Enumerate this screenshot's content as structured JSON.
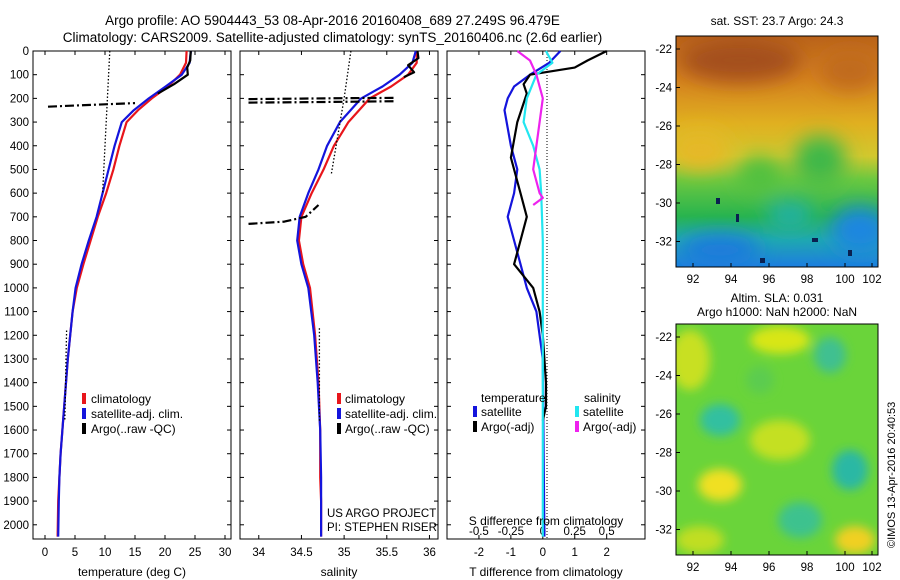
{
  "header": {
    "title_line1": "Argo profile: AO 5904443_53 08-Apr-2016 20160408_689 27.249S 96.479E",
    "title_line2": "Climatology: CARS2009. Satellite-adjusted climatology: synTS_20160406.nc (2.6d earlier)"
  },
  "colors": {
    "red": "#e8151b",
    "blue": "#1414dc",
    "black": "#000000",
    "cyan": "#22e6f0",
    "magenta": "#ee22ee"
  },
  "credits": {
    "project": "US ARGO PROJECT",
    "pi": "PI: STEPHEN RISER"
  },
  "timestamp": "©IMOS 13-Apr-2016 20:40:53",
  "chart_data": [
    {
      "type": "line",
      "xlabel": "temperature (deg C)",
      "xlim": [
        -2,
        31
      ],
      "ylim": [
        2060,
        0
      ],
      "xticks": [
        0,
        5,
        10,
        15,
        20,
        25,
        30
      ],
      "yticks": [
        0,
        100,
        200,
        300,
        400,
        500,
        600,
        700,
        800,
        900,
        1000,
        1100,
        1200,
        1300,
        1400,
        1500,
        1600,
        1700,
        1800,
        1900,
        2000
      ],
      "legend": [
        "climatology",
        "satellite-adj. clim.",
        "Argo(..raw -QC)"
      ],
      "series": [
        {
          "name": "climatology",
          "color": "red",
          "x": [
            23.6,
            23.5,
            22.5,
            20.5,
            17.8,
            15.5,
            13.6,
            12.4,
            11.4,
            10.2,
            8.8,
            7.6,
            6.4,
            5.3,
            4.6,
            4.2,
            3.8,
            3.5,
            3.2,
            2.9,
            2.6,
            2.4,
            2.2,
            2.1
          ],
          "y": [
            0,
            50,
            100,
            150,
            200,
            250,
            300,
            400,
            500,
            600,
            700,
            800,
            900,
            1000,
            1100,
            1200,
            1300,
            1400,
            1500,
            1600,
            1700,
            1800,
            1900,
            2050
          ]
        },
        {
          "name": "satellite-adj. clim.",
          "color": "blue",
          "x": [
            24.3,
            24.1,
            22.8,
            20.1,
            17.3,
            14.8,
            12.8,
            11.6,
            10.6,
            9.6,
            8.6,
            7.3,
            6.1,
            5.1,
            4.6,
            4.2,
            3.8,
            3.5,
            3.2,
            2.9,
            2.6,
            2.4,
            2.3,
            2.2
          ],
          "y": [
            0,
            50,
            100,
            150,
            200,
            250,
            300,
            400,
            500,
            600,
            700,
            800,
            900,
            1000,
            1100,
            1200,
            1300,
            1400,
            1500,
            1600,
            1700,
            1800,
            1900,
            2050
          ]
        },
        {
          "name": "Argo(..raw -QC)",
          "color": "black",
          "x": [
            24.3,
            24.2,
            23.7,
            23.8,
            21.5,
            18.8
          ],
          "y": [
            0,
            40,
            70,
            100,
            140,
            180
          ]
        },
        {
          "name": "Argo dash-dot",
          "color": "black",
          "x": [
            0.5,
            5,
            10,
            15
          ],
          "y": [
            235,
            230,
            225,
            220
          ]
        },
        {
          "name": "Argo dotted",
          "color": "black",
          "x": [
            10.8,
            10.4,
            9.6
          ],
          "y": [
            0,
            200,
            600
          ]
        },
        {
          "name": "Argo dotted deep",
          "color": "black",
          "x": [
            3.6,
            3.5,
            3.4,
            3.3
          ],
          "y": [
            1180,
            1300,
            1450,
            1560
          ]
        }
      ]
    },
    {
      "type": "line",
      "xlabel": "salinity",
      "xlim": [
        33.78,
        36.1
      ],
      "ylim": [
        2060,
        0
      ],
      "xticks": [
        34,
        34.5,
        35,
        35.5,
        36
      ],
      "legend": [
        "climatology",
        "satellite-adj. clim.",
        "Argo(..raw -QC)"
      ],
      "series": [
        {
          "name": "climatology",
          "color": "red",
          "x": [
            35.85,
            35.85,
            35.75,
            35.55,
            35.3,
            35.05,
            34.88,
            34.76,
            34.62,
            34.5,
            34.47,
            34.52,
            34.6,
            34.66,
            34.7,
            34.72,
            34.72,
            34.73,
            34.73
          ],
          "y": [
            0,
            50,
            100,
            150,
            200,
            300,
            400,
            500,
            600,
            700,
            800,
            900,
            1000,
            1200,
            1400,
            1600,
            1800,
            1900,
            2050
          ]
        },
        {
          "name": "satellite-adj. clim.",
          "color": "blue",
          "x": [
            35.84,
            35.8,
            35.65,
            35.45,
            35.2,
            34.95,
            34.8,
            34.7,
            34.58,
            34.48,
            34.45,
            34.5,
            34.58,
            34.65,
            34.69,
            34.72,
            34.73,
            34.73,
            34.73
          ],
          "y": [
            0,
            50,
            100,
            150,
            200,
            300,
            400,
            500,
            600,
            700,
            800,
            900,
            1000,
            1200,
            1400,
            1600,
            1800,
            1900,
            2050
          ]
        },
        {
          "name": "Argo(..raw -QC)",
          "color": "black",
          "x": [
            35.86,
            35.87,
            35.75,
            35.82,
            35.7
          ],
          "y": [
            0,
            30,
            60,
            90,
            110
          ]
        },
        {
          "name": "Argo dash-dot upper",
          "color": "black",
          "x": [
            33.88,
            34.5,
            35.1,
            35.6
          ],
          "y": [
            203,
            201,
            199,
            198
          ]
        },
        {
          "name": "Argo dash-dot lower",
          "color": "black",
          "x": [
            33.88,
            34.5,
            35.1,
            35.6
          ],
          "y": [
            218,
            216,
            214,
            212
          ]
        },
        {
          "name": "Argo dash-dot deep",
          "color": "black",
          "x": [
            33.88,
            34.3,
            34.55,
            34.7
          ],
          "y": [
            730,
            720,
            700,
            650
          ]
        },
        {
          "name": "Argo dotted",
          "color": "black",
          "x": [
            35.08,
            35.0,
            34.85
          ],
          "y": [
            0,
            200,
            520
          ]
        },
        {
          "name": "Argo dotted deep",
          "color": "black",
          "x": [
            34.71,
            34.71
          ],
          "y": [
            1170,
            1560
          ]
        }
      ]
    },
    {
      "type": "line",
      "xlabel": "T difference from climatology",
      "top_label": "S difference from climatology",
      "xlim": [
        -3,
        3.2
      ],
      "ylim": [
        2060,
        0
      ],
      "xticks": [
        -2,
        -1,
        0,
        1,
        2
      ],
      "top_ticks": [
        "-0.5",
        "-0.25",
        "0",
        "0.25",
        "0.5"
      ],
      "legend_temperature": {
        "title": "temperature",
        "items": [
          "satellite",
          "Argo(-adj)"
        ]
      },
      "legend_salinity": {
        "title": "salinity",
        "items": [
          "satellite",
          "Argo(-adj)"
        ]
      },
      "series": [
        {
          "name": "temperature satellite",
          "color": "blue",
          "x": [
            0.55,
            0.2,
            -0.4,
            -0.9,
            -1.1,
            -1.2,
            -1.0,
            -0.8,
            -0.9,
            -1.1,
            -0.9,
            -0.7,
            -0.5,
            -0.2,
            0.0,
            0.05
          ],
          "y": [
            0,
            50,
            100,
            150,
            200,
            250,
            400,
            500,
            600,
            700,
            800,
            900,
            1000,
            1100,
            1300,
            2050
          ]
        },
        {
          "name": "temperature Argo(-adj)",
          "color": "black",
          "x": [
            2.0,
            1.4,
            1.0,
            -0.4,
            -0.6,
            -0.5,
            -0.8,
            -1.0,
            -0.7,
            -0.5,
            -0.7,
            -0.9,
            -0.3,
            -0.1,
            0.0,
            0.05,
            0.1,
            0.1,
            0.0
          ],
          "y": [
            0,
            40,
            70,
            100,
            140,
            180,
            300,
            450,
            600,
            700,
            800,
            900,
            1000,
            1100,
            1200,
            1300,
            1400,
            1500,
            1560
          ]
        },
        {
          "name": "salinity satellite",
          "color": "cyan",
          "x": [
            0.1,
            0.3,
            -0.2,
            -0.5,
            -0.6,
            -0.3,
            -0.1,
            -0.05,
            0.0,
            0.0,
            0.0,
            0.0
          ],
          "y": [
            0,
            50,
            100,
            200,
            300,
            400,
            500,
            600,
            800,
            1000,
            1200,
            2050
          ]
        },
        {
          "name": "salinity Argo(-adj)",
          "color": "magenta",
          "x": [
            -0.8,
            -0.4,
            -0.2,
            0.0,
            -0.2,
            -0.3,
            -0.1,
            0.0,
            -0.3
          ],
          "y": [
            0,
            40,
            100,
            200,
            400,
            500,
            600,
            620,
            650
          ]
        }
      ]
    }
  ],
  "maps": [
    {
      "title": "sat. SST: 23.7 Argo: 24.3",
      "xticks": [
        "92",
        "94",
        "96",
        "98",
        "100",
        "102"
      ],
      "yticks": [
        "-22",
        "-24",
        "-26",
        "-28",
        "-30",
        "-32"
      ]
    },
    {
      "title_line1": "Altim. SLA: 0.031",
      "title_line2": "Argo h1000: NaN h2000: NaN",
      "xticks": [
        "92",
        "94",
        "96",
        "98",
        "100",
        "102"
      ],
      "yticks": [
        "-22",
        "-24",
        "-26",
        "-28",
        "-30",
        "-32"
      ]
    }
  ]
}
